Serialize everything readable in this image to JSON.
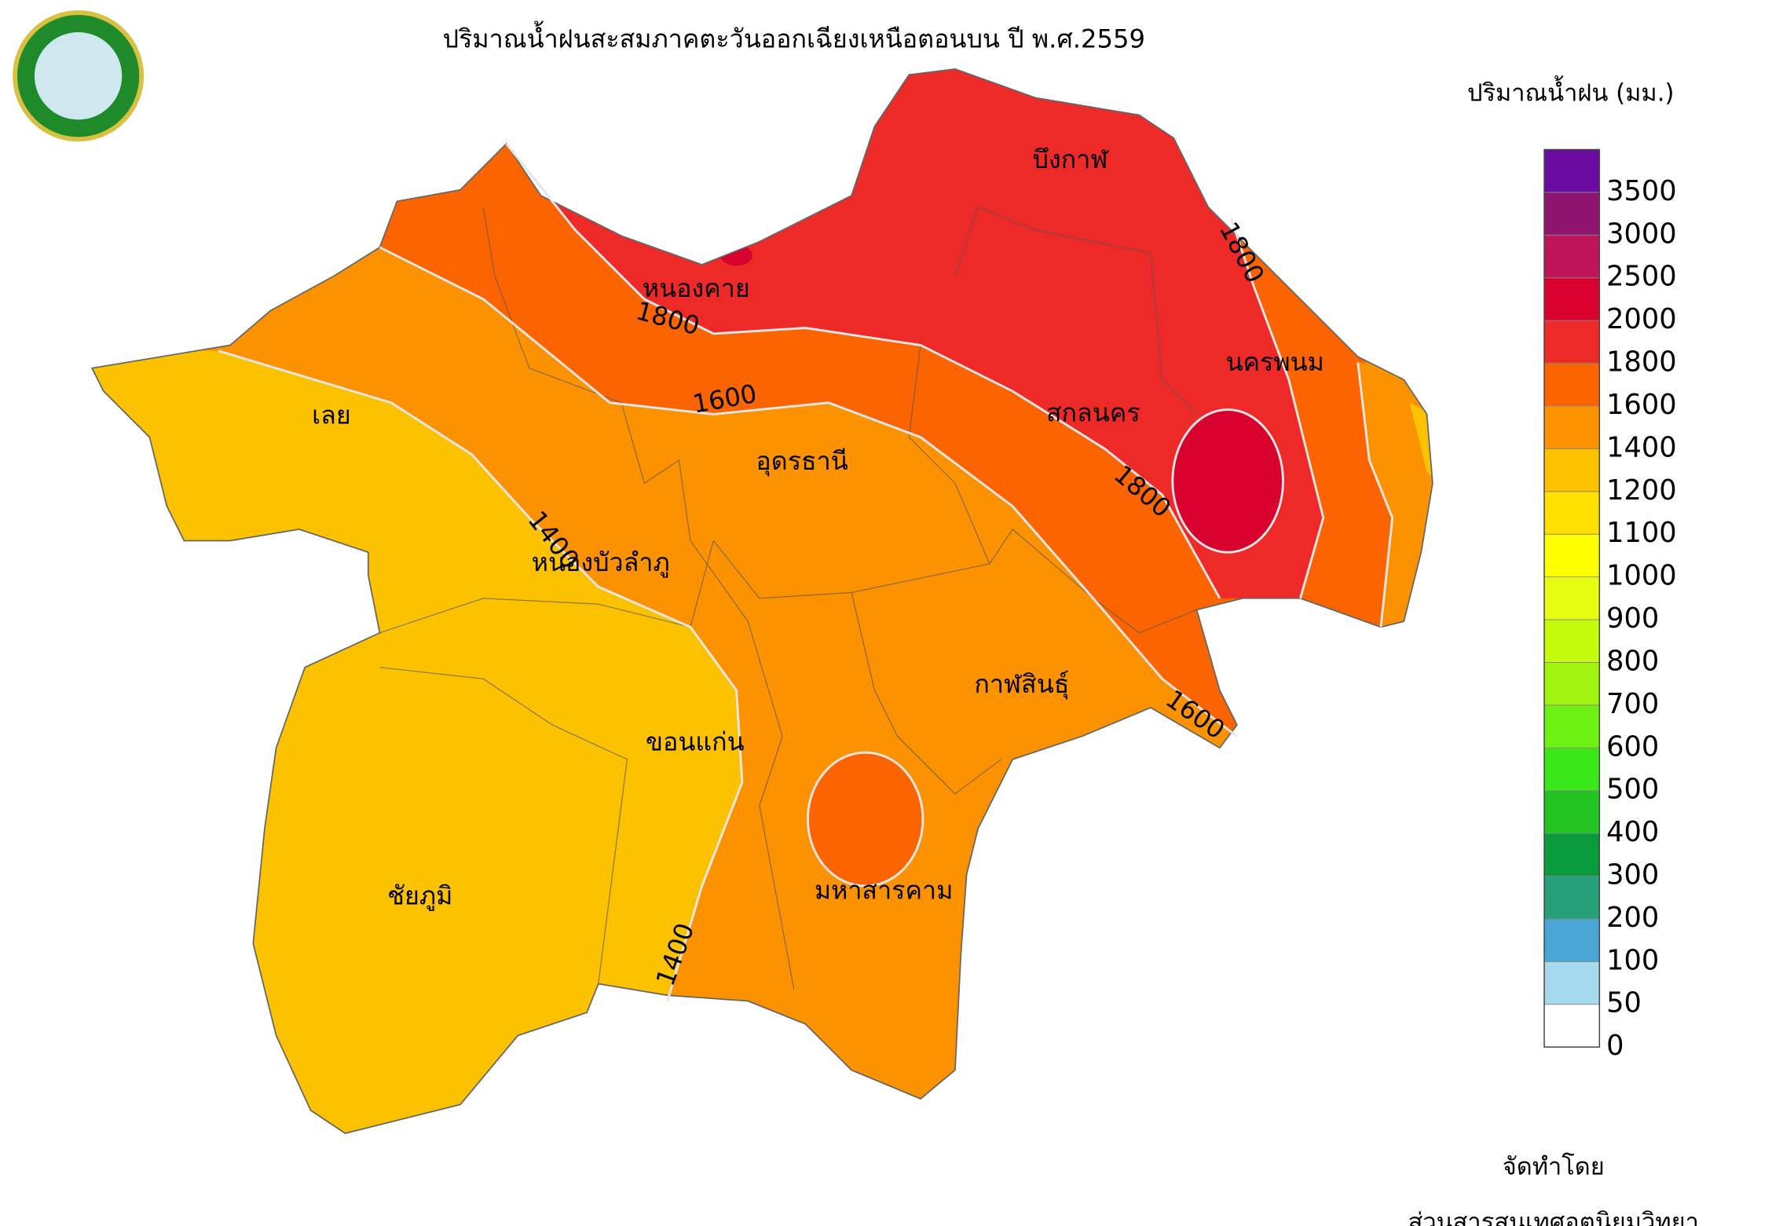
{
  "title": "ปริมาณน้ำฝนสะสมภาคตะวันออกเฉียงเหนือตอนบน ปี พ.ศ.2559",
  "legend": {
    "title": "ปริมาณน้ำฝน (มม.)",
    "levels": [
      0,
      50,
      100,
      200,
      300,
      400,
      500,
      600,
      700,
      800,
      900,
      1000,
      1100,
      1200,
      1400,
      1600,
      1800,
      2000,
      2500,
      3000,
      3500
    ],
    "colors": [
      "#ffffff",
      "#a6d8ee",
      "#4aa6d4",
      "#25a07a",
      "#0a9a3c",
      "#22c422",
      "#3ae81a",
      "#6ef214",
      "#a0f40e",
      "#c4fa0c",
      "#e6fc10",
      "#ffff00",
      "#ffe000",
      "#fcc200",
      "#fc9200",
      "#fc6400",
      "#ee2a28",
      "#d8002c",
      "#c0145a",
      "#8e1470",
      "#6a0aa0"
    ]
  },
  "provinces": [
    "บึงกาฬ",
    "หนองคาย",
    "นครพนม",
    "สกลนคร",
    "เลย",
    "อุดรธานี",
    "หนองบัวลำภู",
    "กาฬสินธุ์",
    "ขอนแก่น",
    "มหาสารคาม",
    "ชัยภูมิ"
  ],
  "contour_labels": [
    "1800",
    "1800",
    "1800",
    "1600",
    "1600",
    "1400",
    "1400"
  ],
  "credit": [
    "จัดทำโดย",
    "ส่วนสารสนเทศอุตุนิยมวิทยา"
  ]
}
